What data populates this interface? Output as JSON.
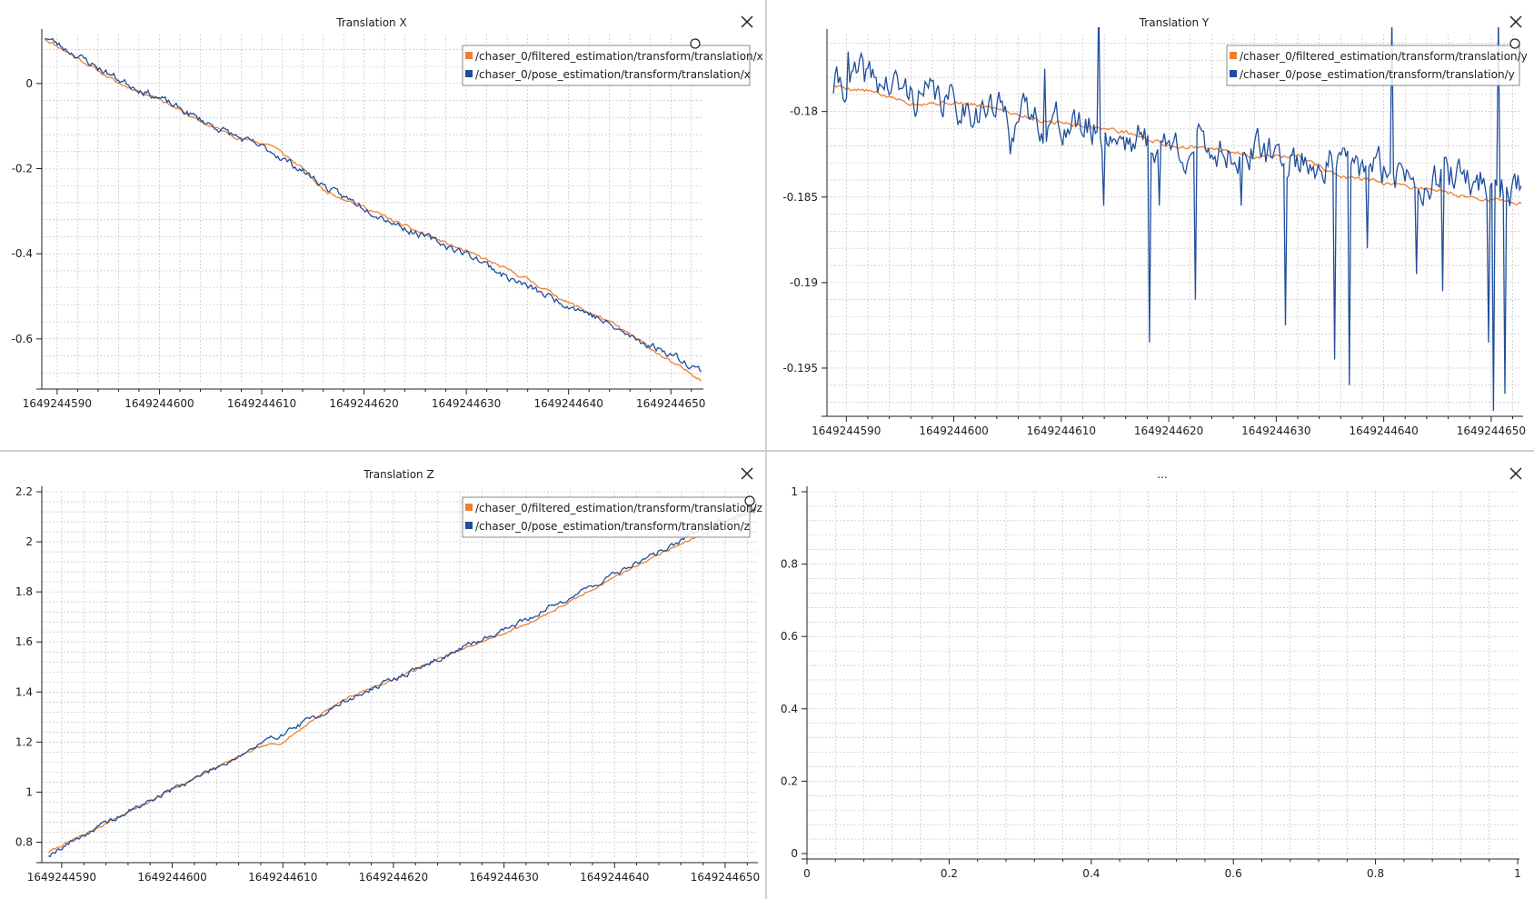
{
  "icons": {
    "close": "close-icon",
    "handle": "circle-handle-icon"
  },
  "colors": {
    "filtered": "#f07f2d",
    "pose": "#1f4e9c",
    "grid": "#b9b9b9",
    "axis": "#202020"
  },
  "chart_data": [
    {
      "id": "tx",
      "type": "line",
      "title": "Translation X",
      "xlabel": "",
      "ylabel": "",
      "xlim": [
        1649244588.5,
        1649244653
      ],
      "ylim": [
        -0.705,
        0.115
      ],
      "xticks": [
        1649244590,
        1649244600,
        1649244610,
        1649244620,
        1649244630,
        1649244640,
        1649244650
      ],
      "xtick_labels": [
        "1649244590",
        "1649244600",
        "1649244610",
        "1649244620",
        "1649244630",
        "1649244640",
        "1649244650"
      ],
      "yticks": [
        0,
        -0.2,
        -0.4,
        -0.6
      ],
      "ytick_labels": [
        "0",
        "-0.2",
        "-0.4",
        "-0.6"
      ],
      "grid": true,
      "legend_position": "top-right",
      "series": [
        {
          "name": "/chaser_0/filtered_estimation/transform/translation/x",
          "color": "#f07f2d",
          "x": [
            1649244588.8,
            1649244592,
            1649244596,
            1649244600,
            1649244604,
            1649244608,
            1649244611,
            1649244614,
            1649244616,
            1649244620,
            1649244624,
            1649244628,
            1649244632,
            1649244636,
            1649244640,
            1649244644,
            1649244647,
            1649244650,
            1649244653
          ],
          "y": [
            0.105,
            0.06,
            0.0,
            -0.035,
            -0.09,
            -0.13,
            -0.145,
            -0.2,
            -0.25,
            -0.29,
            -0.335,
            -0.375,
            -0.415,
            -0.46,
            -0.515,
            -0.56,
            -0.605,
            -0.655,
            -0.695
          ],
          "noise": 0.003,
          "seed": 11
        },
        {
          "name": "/chaser_0/pose_estimation/transform/translation/x",
          "color": "#1f4e9c",
          "x": [
            1649244588.8,
            1649244592,
            1649244596,
            1649244600,
            1649244604,
            1649244608,
            1649244611,
            1649244614,
            1649244617,
            1649244620,
            1649244624,
            1649244628,
            1649244631,
            1649244634,
            1649244638,
            1649244642,
            1649244646,
            1649244650,
            1649244653
          ],
          "y": [
            0.11,
            0.065,
            0.01,
            -0.035,
            -0.085,
            -0.13,
            -0.16,
            -0.205,
            -0.255,
            -0.29,
            -0.34,
            -0.38,
            -0.41,
            -0.455,
            -0.5,
            -0.54,
            -0.595,
            -0.635,
            -0.675
          ],
          "noise": 0.007,
          "seed": 23
        }
      ]
    },
    {
      "id": "ty",
      "type": "line",
      "title": "Translation Y",
      "xlabel": "",
      "ylabel": "",
      "xlim": [
        1649244588.2,
        1649244652.8
      ],
      "ylim": [
        -0.1975,
        -0.1755
      ],
      "xticks": [
        1649244590,
        1649244600,
        1649244610,
        1649244620,
        1649244630,
        1649244640,
        1649244650
      ],
      "xtick_labels": [
        "1649244590",
        "1649244600",
        "1649244610",
        "1649244620",
        "1649244630",
        "1649244640",
        "1649244650"
      ],
      "yticks": [
        -0.18,
        -0.185,
        -0.19,
        -0.195
      ],
      "ytick_labels": [
        "-0.18",
        "-0.185",
        "-0.19",
        "-0.195"
      ],
      "grid": true,
      "legend_position": "top-right",
      "series": [
        {
          "name": "/chaser_0/filtered_estimation/transform/translation/y",
          "color": "#f07f2d",
          "x": [
            1649244588.8,
            1649244592,
            1649244596,
            1649244600,
            1649244604,
            1649244608,
            1649244612,
            1649244616,
            1649244620,
            1649244624,
            1649244628,
            1649244632,
            1649244636,
            1649244640,
            1649244644,
            1649244648,
            1649244652.8
          ],
          "y": [
            -0.1785,
            -0.1788,
            -0.1795,
            -0.1795,
            -0.1798,
            -0.1805,
            -0.1808,
            -0.1812,
            -0.182,
            -0.1822,
            -0.1826,
            -0.1826,
            -0.1838,
            -0.1842,
            -0.1845,
            -0.185,
            -0.1854
          ],
          "noise": 0.0001,
          "seed": 5
        },
        {
          "name": "/chaser_0/pose_estimation/transform/translation/y",
          "color": "#1f4e9c",
          "x": [
            1649244588.8,
            1649244592,
            1649244596,
            1649244600,
            1649244604,
            1649244608,
            1649244612,
            1649244616,
            1649244620,
            1649244624,
            1649244628,
            1649244632,
            1649244636,
            1649244640,
            1649244644,
            1649244648,
            1649244652.8
          ],
          "y": [
            -0.1785,
            -0.178,
            -0.179,
            -0.1795,
            -0.18,
            -0.1805,
            -0.181,
            -0.1815,
            -0.182,
            -0.1822,
            -0.1825,
            -0.1828,
            -0.1832,
            -0.1835,
            -0.1838,
            -0.184,
            -0.1845
          ],
          "noise": 0.0009,
          "seed": 41,
          "spikes": [
            [
              1649244590.2,
              -0.1765
            ],
            [
              1649244605.3,
              -0.1825
            ],
            [
              1649244608.5,
              -0.1775
            ],
            [
              1649244613.5,
              -0.1735
            ],
            [
              1649244614,
              -0.1855
            ],
            [
              1649244618.2,
              -0.1935
            ],
            [
              1649244619.2,
              -0.1855
            ],
            [
              1649244622.5,
              -0.191
            ],
            [
              1649244626.8,
              -0.1855
            ],
            [
              1649244630.8,
              -0.1925
            ],
            [
              1649244634.2,
              -0.1835
            ],
            [
              1649244635.5,
              -0.1945
            ],
            [
              1649244636.8,
              -0.196
            ],
            [
              1649244638.5,
              -0.188
            ],
            [
              1649244640.8,
              -0.1745
            ],
            [
              1649244643,
              -0.1895
            ],
            [
              1649244645.5,
              -0.1905
            ],
            [
              1649244649.8,
              -0.1935
            ],
            [
              1649244650.2,
              -0.1975
            ],
            [
              1649244650.7,
              -0.1745
            ],
            [
              1649244651.3,
              -0.1965
            ]
          ]
        }
      ]
    },
    {
      "id": "tz",
      "type": "line",
      "title": "Translation Z",
      "xlabel": "",
      "ylabel": "",
      "xlim": [
        1649244588.2,
        1649244652.8
      ],
      "ylim": [
        0.74,
        2.2
      ],
      "xticks": [
        1649244590,
        1649244600,
        1649244610,
        1649244620,
        1649244630,
        1649244640,
        1649244650
      ],
      "xtick_labels": [
        "1649244590",
        "1649244600",
        "1649244610",
        "1649244620",
        "1649244630",
        "1649244640",
        "1649244650"
      ],
      "yticks": [
        2.2,
        2,
        1.8,
        1.6,
        1.4,
        1.2,
        1,
        0.8
      ],
      "ytick_labels": [
        "2.2",
        "2",
        "1.8",
        "1.6",
        "1.4",
        "1.2",
        "1",
        "0.8"
      ],
      "grid": true,
      "legend_position": "top-right",
      "series": [
        {
          "name": "/chaser_0/filtered_estimation/transform/translation/z",
          "color": "#f07f2d",
          "x": [
            1649244588.8,
            1649244592,
            1649244596,
            1649244600,
            1649244604,
            1649244608,
            1649244610,
            1649244614,
            1649244616,
            1649244620,
            1649244624,
            1649244628,
            1649244632,
            1649244636,
            1649244640,
            1649244644,
            1649244648,
            1649244652.8
          ],
          "y": [
            0.76,
            0.83,
            0.92,
            1.01,
            1.1,
            1.18,
            1.2,
            1.33,
            1.38,
            1.45,
            1.53,
            1.6,
            1.67,
            1.76,
            1.86,
            1.95,
            2.03,
            2.13
          ],
          "noise": 0.004,
          "seed": 7
        },
        {
          "name": "/chaser_0/pose_estimation/transform/translation/z",
          "color": "#1f4e9c",
          "x": [
            1649244588.8,
            1649244592,
            1649244596,
            1649244600,
            1649244604,
            1649244608,
            1649244612,
            1649244616,
            1649244620,
            1649244624,
            1649244628,
            1649244632,
            1649244636,
            1649244640,
            1649244644,
            1649244648,
            1649244652.8
          ],
          "y": [
            0.75,
            0.83,
            0.92,
            1.01,
            1.1,
            1.19,
            1.28,
            1.37,
            1.45,
            1.53,
            1.61,
            1.69,
            1.78,
            1.87,
            1.96,
            2.05,
            2.14
          ],
          "noise": 0.009,
          "seed": 19
        }
      ]
    },
    {
      "id": "empty",
      "type": "line",
      "title": "...",
      "xlabel": "",
      "ylabel": "",
      "xlim": [
        0,
        1
      ],
      "ylim": [
        0,
        1
      ],
      "xticks": [
        0,
        0.2,
        0.4,
        0.6,
        0.8,
        1
      ],
      "xtick_labels": [
        "0",
        "0.2",
        "0.4",
        "0.6",
        "0.8",
        "1"
      ],
      "yticks": [
        1,
        0.8,
        0.6,
        0.4,
        0.2,
        0
      ],
      "ytick_labels": [
        "1",
        "0.8",
        "0.6",
        "0.4",
        "0.2",
        "0"
      ],
      "grid": true,
      "legend_position": "none",
      "series": []
    }
  ]
}
